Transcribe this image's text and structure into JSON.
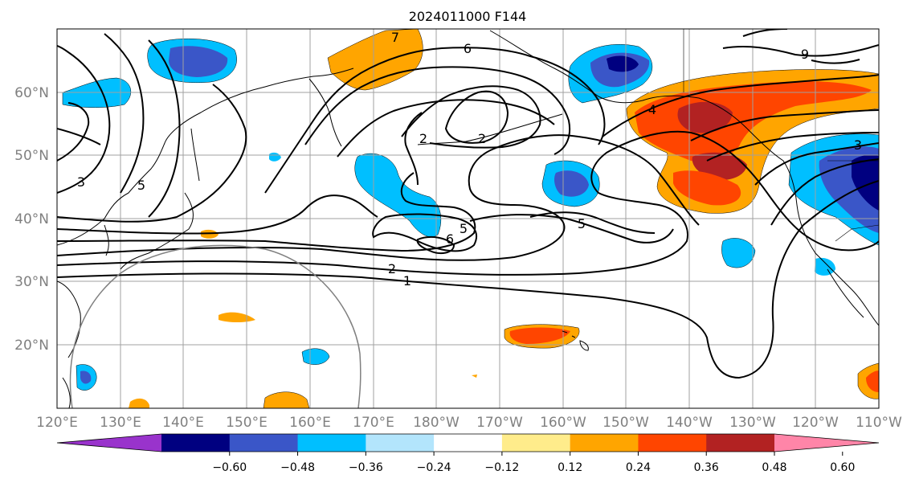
{
  "title": "2024011000 F144",
  "map": {
    "lat_labels": [
      "60°N",
      "50°N",
      "40°N",
      "30°N",
      "20°N"
    ],
    "lon_labels": [
      "120°E",
      "130°E",
      "140°E",
      "150°E",
      "160°E",
      "170°E",
      "180°W",
      "170°W",
      "160°W",
      "150°W",
      "140°W",
      "130°W",
      "120°W",
      "110°W"
    ],
    "contour_labels": [
      "7",
      "6",
      "2",
      "2",
      "4",
      "3",
      "3",
      "5",
      "5",
      "6",
      "2",
      "1",
      "5",
      "9"
    ]
  },
  "colorbar": {
    "ticks": [
      "−0.60",
      "−0.48",
      "−0.36",
      "−0.24",
      "−0.12",
      "0.12",
      "0.24",
      "0.36",
      "0.48",
      "0.60"
    ],
    "colors": [
      "#9933cc",
      "#000080",
      "#3a56c8",
      "#00bfff",
      "#b3e5fc",
      "#ffffff",
      "#ffec8b",
      "#ffa500",
      "#ff4500",
      "#b22222",
      "#ff85a8"
    ]
  }
}
